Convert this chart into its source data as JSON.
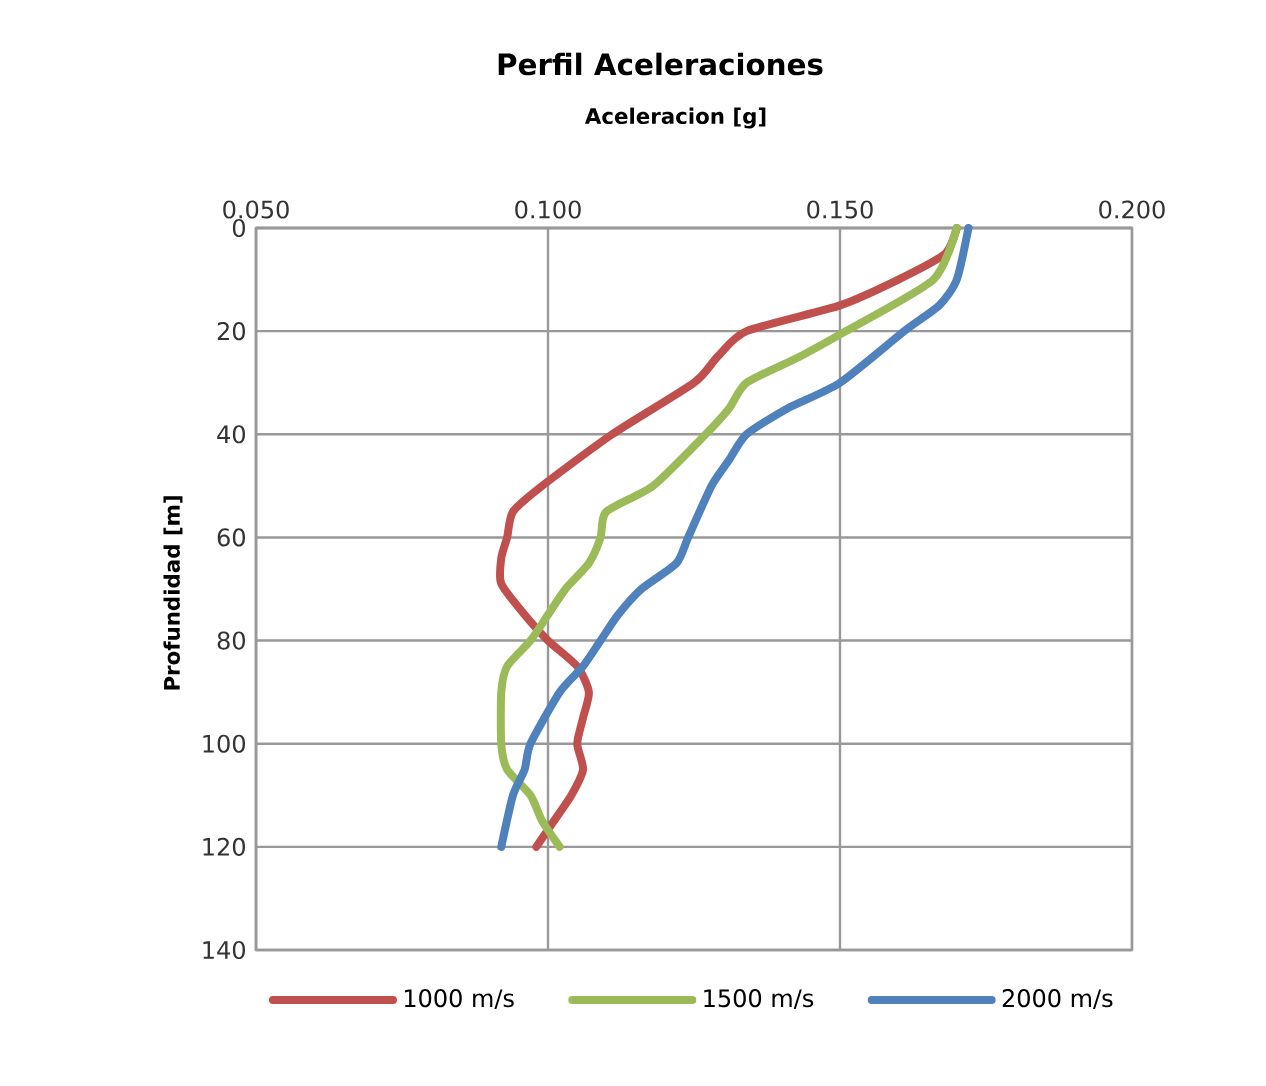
{
  "chart_data": {
    "type": "line",
    "title": "Perfil Aceleraciones",
    "xlabel": "Aceleracion [g]",
    "ylabel": "Profundidad [m]",
    "xlim": [
      0.05,
      0.2
    ],
    "xticks": [
      {
        "value": 0.05,
        "label": "0.050"
      },
      {
        "value": 0.1,
        "label": "0.100"
      },
      {
        "value": 0.15,
        "label": "0.150"
      },
      {
        "value": 0.2,
        "label": "0.200"
      }
    ],
    "ylim": [
      140,
      0
    ],
    "yticks": [
      0,
      20,
      40,
      60,
      80,
      100,
      120,
      140
    ],
    "grid": true,
    "legend": "bottom",
    "marker": "none",
    "line_style": "solid",
    "series": [
      {
        "name": "1000 m/s",
        "color": "#c0504d",
        "x": [
          0.17,
          0.168,
          0.16,
          0.15,
          0.134,
          0.129,
          0.125,
          0.111,
          0.099,
          0.094,
          0.093,
          0.092,
          0.092,
          0.096,
          0.1,
          0.105,
          0.107,
          0.106,
          0.105,
          0.106,
          0.104,
          0.101,
          0.098
        ],
        "values": [
          0,
          5,
          10,
          15,
          20,
          25,
          30,
          40,
          50,
          55,
          60,
          64,
          69,
          75,
          80,
          85,
          90,
          95,
          100,
          105,
          110,
          115,
          120
        ]
      },
      {
        "name": "1500 m/s",
        "color": "#9bbb59",
        "x": [
          0.17,
          0.166,
          0.151,
          0.143,
          0.134,
          0.131,
          0.127,
          0.118,
          0.11,
          0.109,
          0.107,
          0.103,
          0.1,
          0.097,
          0.093,
          0.092,
          0.092,
          0.093,
          0.097,
          0.099,
          0.102
        ],
        "values": [
          0,
          10,
          20,
          25,
          30,
          35,
          40,
          50,
          55,
          60,
          65,
          70,
          75,
          80,
          85,
          90,
          100,
          105,
          110,
          115,
          120
        ]
      },
      {
        "name": "2000 m/s",
        "color": "#4f81bd",
        "x": [
          0.172,
          0.17,
          0.167,
          0.161,
          0.15,
          0.141,
          0.134,
          0.131,
          0.128,
          0.124,
          0.122,
          0.116,
          0.112,
          0.109,
          0.106,
          0.102,
          0.097,
          0.096,
          0.094,
          0.092
        ],
        "values": [
          0,
          10,
          15,
          20,
          30,
          35,
          40,
          45,
          50,
          60,
          65,
          70,
          75,
          80,
          85,
          90,
          100,
          105,
          110,
          120
        ]
      }
    ]
  }
}
